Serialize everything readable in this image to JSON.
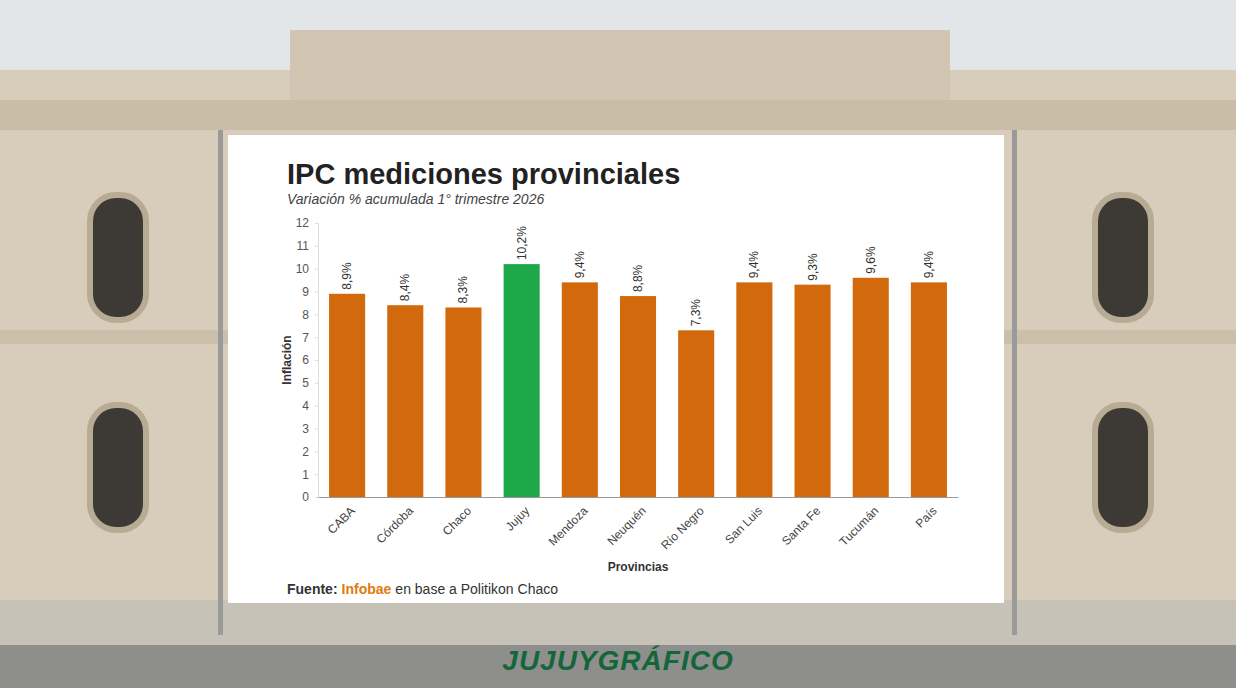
{
  "chart_data": {
    "type": "bar",
    "title": "IPC mediciones provinciales",
    "subtitle": "Variación % acumulada 1° trimestre 2026",
    "x_label": "Provincias",
    "y_label": "Inflación",
    "categories": [
      "CABA",
      "Córdoba",
      "Chaco",
      "Jujuy",
      "Mendoza",
      "Neuquén",
      "Río Negro",
      "San Luis",
      "Santa Fe",
      "Tucumán",
      "País"
    ],
    "values": [
      8.9,
      8.4,
      8.3,
      10.2,
      9.4,
      8.8,
      7.3,
      9.4,
      9.3,
      9.6,
      9.4
    ],
    "value_labels": [
      "8,9%",
      "8,4%",
      "8,3%",
      "10,2%",
      "9,4%",
      "8,8%",
      "7,3%",
      "9,4%",
      "9,3%",
      "9,6%",
      "9,4%"
    ],
    "colors": [
      "#d2690c",
      "#d2690c",
      "#d2690c",
      "#1ea84a",
      "#d2690c",
      "#d2690c",
      "#d2690c",
      "#d2690c",
      "#d2690c",
      "#d2690c",
      "#d2690c"
    ],
    "ylim": [
      0,
      12
    ],
    "yticks": [
      0,
      1,
      2,
      3,
      4,
      5,
      6,
      7,
      8,
      9,
      10,
      11,
      12
    ],
    "grid": false,
    "data_labels": true,
    "source": [
      "Fuente:",
      "Infobae",
      "en base a Politikon Chaco"
    ],
    "annotations": [
      "JUJUYGRÁFICO"
    ]
  }
}
